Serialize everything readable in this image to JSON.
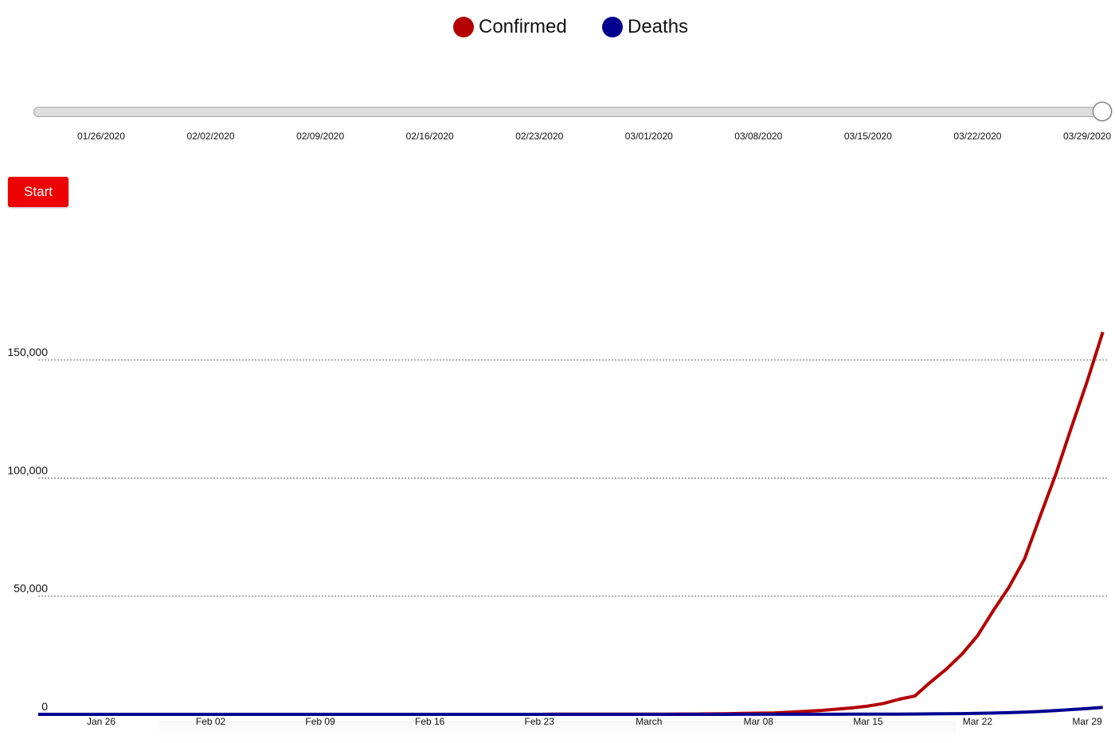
{
  "legend": {
    "items": [
      {
        "label": "Confirmed",
        "color": "#b30000"
      },
      {
        "label": "Deaths",
        "color": "#00008f"
      }
    ]
  },
  "slider": {
    "value": 1.0,
    "tick_labels": [
      "01/26/2020",
      "02/02/2020",
      "02/09/2020",
      "02/16/2020",
      "02/23/2020",
      "03/01/2020",
      "03/08/2020",
      "03/15/2020",
      "03/22/2020",
      "03/29/2020"
    ]
  },
  "controls": {
    "start_label": "Start"
  },
  "chart_data": {
    "type": "line",
    "x": [
      "01/22/2020",
      "01/23/2020",
      "01/24/2020",
      "01/25/2020",
      "01/26/2020",
      "01/27/2020",
      "01/28/2020",
      "01/29/2020",
      "01/30/2020",
      "01/31/2020",
      "02/01/2020",
      "02/02/2020",
      "02/03/2020",
      "02/04/2020",
      "02/05/2020",
      "02/06/2020",
      "02/07/2020",
      "02/08/2020",
      "02/09/2020",
      "02/10/2020",
      "02/11/2020",
      "02/12/2020",
      "02/13/2020",
      "02/14/2020",
      "02/15/2020",
      "02/16/2020",
      "02/17/2020",
      "02/18/2020",
      "02/19/2020",
      "02/20/2020",
      "02/21/2020",
      "02/22/2020",
      "02/23/2020",
      "02/24/2020",
      "02/25/2020",
      "02/26/2020",
      "02/27/2020",
      "02/28/2020",
      "02/29/2020",
      "03/01/2020",
      "03/02/2020",
      "03/03/2020",
      "03/04/2020",
      "03/05/2020",
      "03/06/2020",
      "03/07/2020",
      "03/08/2020",
      "03/09/2020",
      "03/10/2020",
      "03/11/2020",
      "03/12/2020",
      "03/13/2020",
      "03/14/2020",
      "03/15/2020",
      "03/16/2020",
      "03/17/2020",
      "03/18/2020",
      "03/19/2020",
      "03/20/2020",
      "03/21/2020",
      "03/22/2020",
      "03/23/2020",
      "03/24/2020",
      "03/25/2020",
      "03/26/2020",
      "03/27/2020",
      "03/28/2020",
      "03/29/2020",
      "03/30/2020"
    ],
    "series": [
      {
        "name": "Confirmed",
        "color": "#b30000",
        "values": [
          1,
          1,
          2,
          2,
          5,
          5,
          5,
          5,
          5,
          7,
          8,
          8,
          11,
          11,
          11,
          11,
          11,
          11,
          11,
          11,
          12,
          12,
          13,
          13,
          13,
          13,
          13,
          13,
          13,
          13,
          15,
          15,
          15,
          51,
          51,
          57,
          58,
          60,
          68,
          74,
          98,
          118,
          149,
          217,
          262,
          402,
          518,
          583,
          959,
          1281,
          1663,
          2179,
          2727,
          3499,
          4632,
          6421,
          7786,
          13680,
          19101,
          25493,
          33276,
          43847,
          53740,
          65778,
          83836,
          101657,
          121478,
          140886,
          161807
        ]
      },
      {
        "name": "Deaths",
        "color": "#00008f",
        "values": [
          0,
          0,
          0,
          0,
          0,
          0,
          0,
          0,
          0,
          0,
          0,
          0,
          0,
          0,
          0,
          0,
          0,
          0,
          0,
          0,
          0,
          0,
          0,
          0,
          0,
          0,
          0,
          0,
          0,
          0,
          0,
          0,
          0,
          0,
          0,
          0,
          0,
          0,
          1,
          1,
          6,
          7,
          11,
          12,
          14,
          17,
          21,
          22,
          28,
          36,
          40,
          47,
          54,
          63,
          85,
          108,
          118,
          200,
          244,
          307,
          427,
          552,
          706,
          942,
          1209,
          1581,
          2026,
          2467,
          2978
        ]
      }
    ],
    "x_tick_labels": [
      "Jan 26",
      "Feb 02",
      "Feb 09",
      "Feb 16",
      "Feb 23",
      "March",
      "Mar 08",
      "Mar 15",
      "Mar 22",
      "Mar 29"
    ],
    "x_tick_dates": [
      "01/26/2020",
      "02/02/2020",
      "02/09/2020",
      "02/16/2020",
      "02/23/2020",
      "03/01/2020",
      "03/08/2020",
      "03/15/2020",
      "03/22/2020",
      "03/29/2020"
    ],
    "y_ticks": [
      0,
      50000,
      100000,
      150000
    ],
    "y_tick_labels": [
      "0",
      "50,000",
      "100,000",
      "150,000"
    ],
    "ylim": [
      0,
      160000
    ],
    "grid": true,
    "legend_position": "top-center"
  }
}
